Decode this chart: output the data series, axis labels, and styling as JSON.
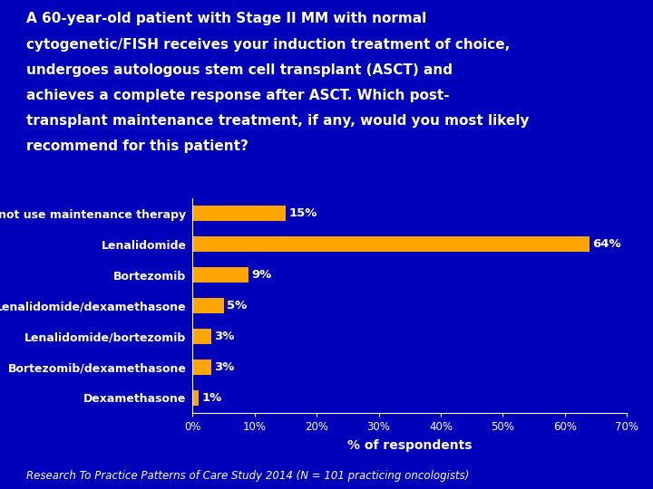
{
  "title_lines": [
    "A 60-year-old patient with Stage II MM with normal",
    "cytogenetic/FISH receives your induction treatment of choice,",
    "undergoes autologous stem cell transplant (ASCT) and",
    "achieves a complete response after ASCT. Which post-",
    "transplant maintenance treatment, if any, would you most likely",
    "recommend for this patient?"
  ],
  "categories": [
    "I would not use maintenance therapy",
    "Lenalidomide",
    "Bortezomib",
    "Lenalidomide/dexamethasone",
    "Lenalidomide/bortezomib",
    "Bortezomib/dexamethasone",
    "Dexamethasone"
  ],
  "values": [
    15,
    64,
    9,
    5,
    3,
    3,
    1
  ],
  "bar_color": "#FFA500",
  "background_color": "#0000BB",
  "text_color": "#FFFFFF",
  "xlabel": "% of respondents",
  "xlim": [
    0,
    70
  ],
  "xticks": [
    0,
    10,
    20,
    30,
    40,
    50,
    60,
    70
  ],
  "xtick_labels": [
    "0%",
    "10%",
    "20%",
    "30%",
    "40%",
    "50%",
    "60%",
    "70%"
  ],
  "footer": "Research To Practice Patterns of Care Study 2014 (N = 101 practicing oncologists)",
  "title_fontsize": 11.0,
  "label_fontsize": 9.0,
  "value_fontsize": 9.5,
  "xlabel_fontsize": 10,
  "xtick_fontsize": 8.5,
  "footer_fontsize": 8.5
}
